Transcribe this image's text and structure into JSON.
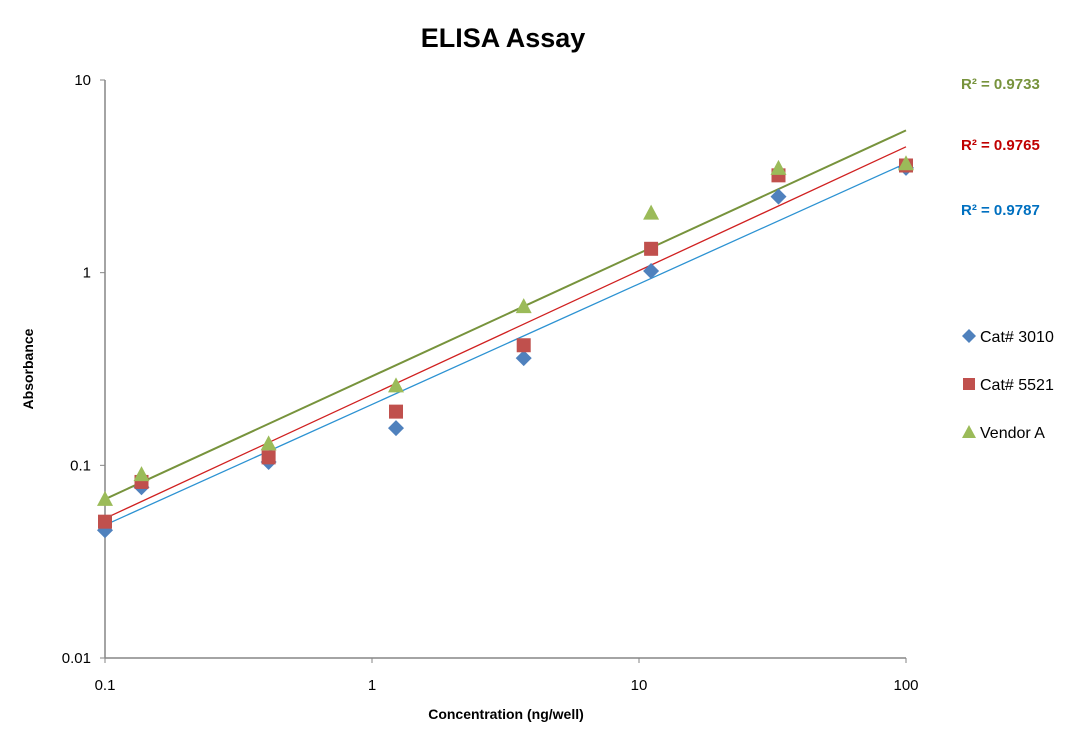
{
  "chart_data": {
    "type": "scatter",
    "title": "ELISA Assay",
    "xlabel": "Concentration (ng/well)",
    "ylabel": "Absorbance",
    "xscale": "log",
    "yscale": "log",
    "xlim": [
      0.1,
      100
    ],
    "ylim": [
      0.01,
      10
    ],
    "x_ticks": [
      "0.1",
      "1",
      "10",
      "100"
    ],
    "y_ticks": [
      "0.01",
      "0.1",
      "1",
      "10"
    ],
    "grid": false,
    "legend_position": "right",
    "x": [
      0.1,
      0.137,
      0.41,
      1.23,
      3.7,
      11.1,
      33.3,
      100
    ],
    "series": [
      {
        "name": "Cat# 3010",
        "marker": "diamond",
        "color": "#4F81BD",
        "trend_color": "#2C92D2",
        "r2_color": "#0070C0",
        "values": [
          0.046,
          0.077,
          0.104,
          0.156,
          0.36,
          1.02,
          2.48,
          3.5
        ],
        "trendline": {
          "type": "power",
          "a": 0.207,
          "b": 0.626
        },
        "r2_label": "R² = 0.9787"
      },
      {
        "name": "Cat# 5521",
        "marker": "square",
        "color": "#C0504D",
        "trend_color": "#D02020",
        "r2_color": "#C00000",
        "values": [
          0.051,
          0.082,
          0.11,
          0.19,
          0.42,
          1.33,
          3.2,
          3.6
        ],
        "trendline": {
          "type": "power",
          "a": 0.233,
          "b": 0.643
        },
        "r2_label": "R² = 0.9765"
      },
      {
        "name": "Vendor A",
        "marker": "triangle",
        "color": "#9BBB59",
        "trend_color": "#77933C",
        "r2_color": "#77933C",
        "values": [
          0.067,
          0.09,
          0.13,
          0.26,
          0.67,
          2.05,
          3.5,
          3.7
        ],
        "trendline": {
          "type": "power",
          "a": 0.29,
          "b": 0.638
        },
        "r2_label": "R² = 0.9733"
      }
    ]
  }
}
